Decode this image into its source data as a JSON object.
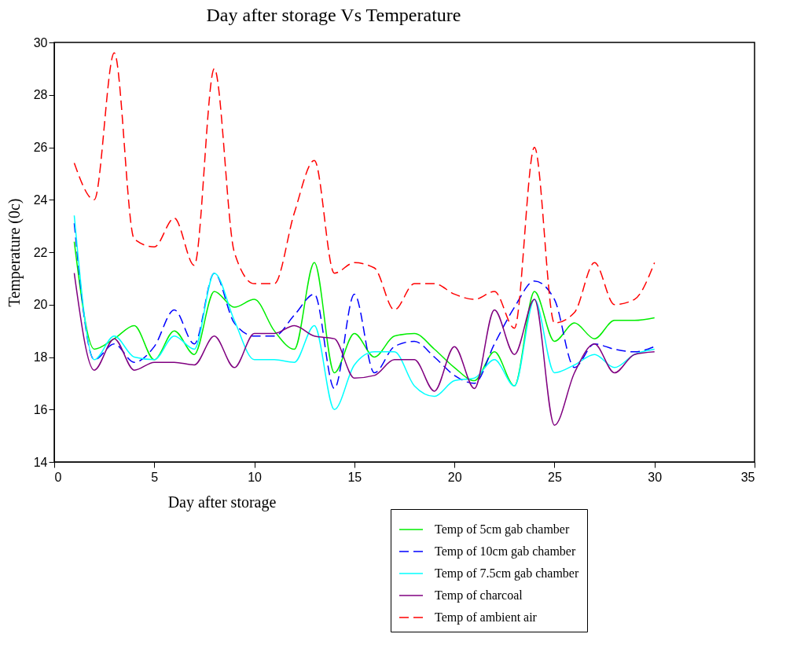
{
  "chart_data": {
    "type": "line",
    "title": "Day after storage Vs Temperature",
    "xlabel": "Day after storage",
    "ylabel": "Temperature (0c)",
    "x": [
      1,
      2,
      3,
      4,
      5,
      6,
      7,
      8,
      9,
      10,
      11,
      12,
      13,
      14,
      15,
      16,
      17,
      18,
      19,
      20,
      21,
      22,
      23,
      24,
      25,
      26,
      27,
      28,
      29,
      30
    ],
    "xlim": [
      0,
      35
    ],
    "xticks": [
      0,
      5,
      10,
      15,
      20,
      25,
      30,
      35
    ],
    "ylim": [
      14,
      30
    ],
    "yticks": [
      14,
      16,
      18,
      20,
      22,
      24,
      26,
      28,
      30
    ],
    "grid": false,
    "legend": "bottom right",
    "marker": "none",
    "series": [
      {
        "name": "Temp of 5cm gab chamber",
        "color": "#00ee00",
        "line_style": "solid",
        "values": [
          22.4,
          18.3,
          18.7,
          19.2,
          17.9,
          19.0,
          18.1,
          20.5,
          19.9,
          20.2,
          19.0,
          18.3,
          21.6,
          17.4,
          18.9,
          18.0,
          18.8,
          18.9,
          18.3,
          17.6,
          17.1,
          18.2,
          16.9,
          20.5,
          18.6,
          19.3,
          18.7,
          19.4,
          19.4,
          19.5
        ]
      },
      {
        "name": "Temp of 10cm gab chamber",
        "color": "#0000ff",
        "line_style": "dashed",
        "values": [
          23.1,
          17.9,
          18.5,
          17.8,
          18.4,
          19.8,
          18.5,
          21.2,
          19.3,
          18.8,
          18.8,
          19.6,
          20.4,
          16.8,
          20.4,
          17.4,
          18.4,
          18.6,
          18.0,
          17.3,
          17.0,
          18.5,
          19.9,
          20.9,
          20.2,
          17.6,
          18.5,
          18.3,
          18.2,
          18.4
        ]
      },
      {
        "name": "Temp of 7.5cm gab chamber",
        "color": "#00ffff",
        "line_style": "solid",
        "values": [
          23.4,
          17.9,
          18.8,
          18.0,
          17.9,
          18.8,
          18.3,
          21.2,
          19.4,
          17.9,
          17.9,
          17.8,
          19.2,
          16.0,
          17.7,
          18.2,
          18.2,
          16.9,
          16.5,
          17.1,
          17.2,
          17.9,
          16.9,
          20.2,
          17.4,
          17.7,
          18.1,
          17.6,
          18.1,
          18.3
        ]
      },
      {
        "name": "Temp of charcoal",
        "color": "#800080",
        "line_style": "solid",
        "values": [
          21.2,
          17.5,
          18.7,
          17.5,
          17.8,
          17.8,
          17.7,
          18.8,
          17.6,
          18.9,
          18.9,
          19.2,
          18.8,
          18.7,
          17.2,
          17.3,
          17.9,
          17.9,
          16.7,
          18.4,
          16.8,
          19.8,
          18.1,
          20.2,
          15.4,
          17.4,
          18.5,
          17.4,
          18.1,
          18.2
        ]
      },
      {
        "name": "Temp of ambient air",
        "color": "#ff0000",
        "line_style": "dashed",
        "values": [
          25.4,
          24.0,
          29.6,
          22.5,
          22.2,
          23.3,
          21.5,
          29.0,
          22.0,
          20.8,
          20.8,
          23.5,
          25.5,
          21.2,
          21.6,
          21.4,
          19.8,
          20.8,
          20.8,
          20.4,
          20.2,
          20.5,
          19.1,
          26.0,
          19.3,
          19.7,
          21.6,
          20.0,
          20.2,
          21.6
        ]
      }
    ]
  }
}
